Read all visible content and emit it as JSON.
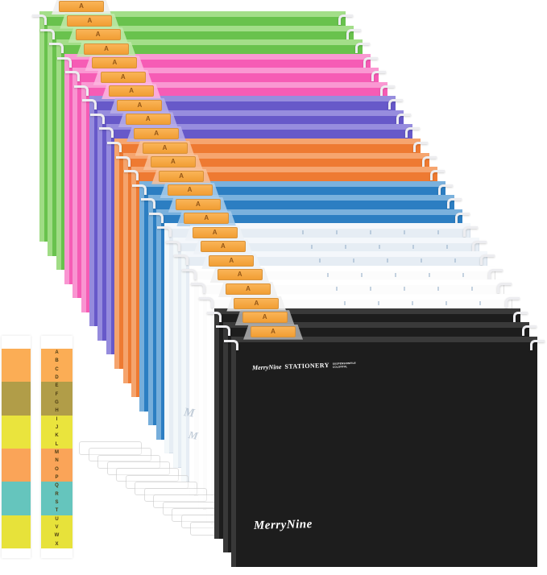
{
  "product": {
    "tab_letter": "A"
  },
  "folders": [
    {
      "color": "green",
      "tab_label": "A"
    },
    {
      "color": "green",
      "tab_label": "A"
    },
    {
      "color": "green",
      "tab_label": "A"
    },
    {
      "color": "pink",
      "tab_label": "A"
    },
    {
      "color": "pink",
      "tab_label": "A"
    },
    {
      "color": "pink",
      "tab_label": "A"
    },
    {
      "color": "purple",
      "tab_label": "A"
    },
    {
      "color": "purple",
      "tab_label": "A"
    },
    {
      "color": "purple",
      "tab_label": "A"
    },
    {
      "color": "orange",
      "tab_label": "A"
    },
    {
      "color": "orange",
      "tab_label": "A"
    },
    {
      "color": "orange",
      "tab_label": "A"
    },
    {
      "color": "blue",
      "tab_label": "A"
    },
    {
      "color": "blue",
      "tab_label": "A"
    },
    {
      "color": "blue",
      "tab_label": "A"
    },
    {
      "color": "clear",
      "tab_label": "A"
    },
    {
      "color": "clear",
      "tab_label": "A"
    },
    {
      "color": "clear",
      "tab_label": "A"
    },
    {
      "color": "white",
      "tab_label": "A"
    },
    {
      "color": "white",
      "tab_label": "A"
    },
    {
      "color": "white",
      "tab_label": "A"
    },
    {
      "color": "black",
      "tab_label": "A"
    },
    {
      "color": "black",
      "tab_label": "A"
    },
    {
      "color": "black",
      "tab_label": "A"
    }
  ],
  "palette": {
    "green": {
      "main": "#69C24D",
      "light": "#A6DF8C",
      "holder": "#C2EAAB"
    },
    "pink": {
      "main": "#F65CB5",
      "light": "#FA9BD4",
      "holder": "#FBB7E0"
    },
    "purple": {
      "main": "#6759C9",
      "light": "#9A90DF",
      "holder": "#B7AFE9"
    },
    "orange": {
      "main": "#EE7A32",
      "light": "#F5A873",
      "holder": "#F8C29B"
    },
    "blue": {
      "main": "#2C7EC2",
      "light": "#7EB4DE",
      "holder": "#ABCEEB"
    },
    "clear": {
      "main": "#E6EDF4",
      "light": "#F4F8FB",
      "holder": "#EDF2F7",
      "border": "#D5DFE9"
    },
    "white": {
      "main": "#FCFCFC",
      "light": "#FFFFFF",
      "holder": "#F0F0F0",
      "border": "#E2E2E2"
    },
    "black": {
      "main": "#1D1D1D",
      "light": "#3C3C3C",
      "holder": "#B0B0B0"
    }
  },
  "branding": {
    "brand": "MerryNine",
    "word": "STATIONERY",
    "sub1": "SUSPENSIONFILE",
    "sub2": "COLORFUL",
    "logo": "MerryNine"
  },
  "strips": {
    "sections": [
      {
        "bg": "#FBAD55",
        "letters": [
          "A",
          "B",
          "C",
          "D"
        ]
      },
      {
        "bg": "#B19D48",
        "letters": [
          "E",
          "F",
          "G",
          "H"
        ]
      },
      {
        "bg": "#EAE43D",
        "letters": [
          "I",
          "J",
          "K",
          "L"
        ]
      },
      {
        "bg": "#FAA458",
        "letters": [
          "M",
          "N",
          "O",
          "P"
        ]
      },
      {
        "bg": "#65C5BD",
        "letters": [
          "Q",
          "R",
          "S",
          "T"
        ]
      },
      {
        "bg": "#E7E23A",
        "letters": [
          "U",
          "V",
          "W",
          "X"
        ]
      }
    ]
  },
  "watermark": [
    "M",
    "M"
  ],
  "spare_tab_holders": {
    "count": 13
  }
}
